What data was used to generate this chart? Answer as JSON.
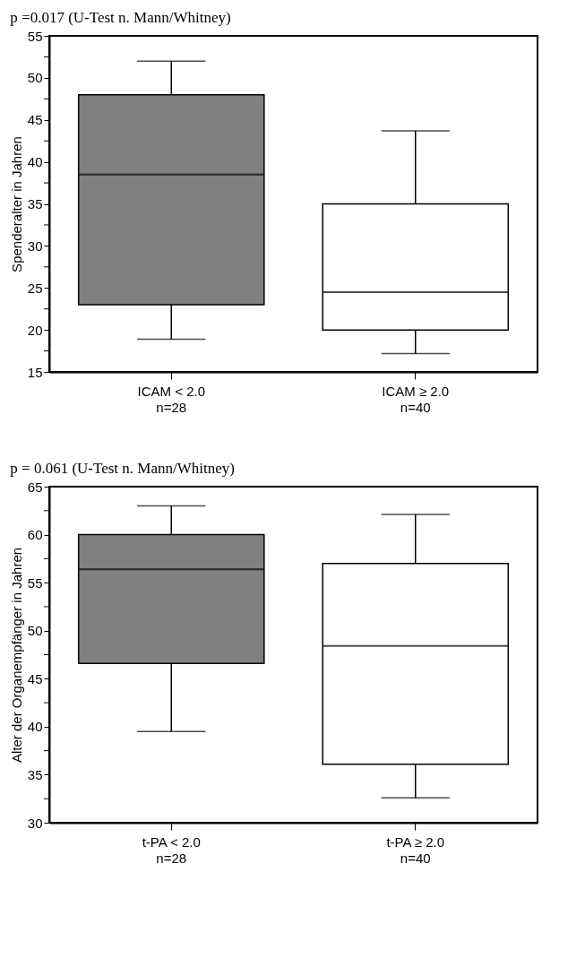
{
  "chart_data": [
    {
      "type": "box",
      "title": "p =0.017 (U-Test n. Mann/Whitney)",
      "ylabel": "Spenderalter in Jahren",
      "categories": [
        "ICAM < 2.0\nn=28",
        "ICAM ≥ 2.0\nn=40"
      ],
      "boxes": [
        {
          "low": 18.9,
          "q1": 23,
          "median": 38.5,
          "q3": 48,
          "high": 52
        },
        {
          "low": 17.2,
          "q1": 20,
          "median": 24.5,
          "q3": 35,
          "high": 43.7
        }
      ],
      "colors": [
        "#808080",
        "#ffffff"
      ],
      "ylim": [
        15,
        55
      ],
      "yticks": [
        15,
        {
          "value": 17.5,
          "label": null
        },
        20,
        {
          "value": 22.5,
          "label": null
        },
        25,
        {
          "value": 27.5,
          "label": null
        },
        30,
        {
          "value": 32.5,
          "label": null
        },
        35,
        {
          "value": 37.5,
          "label": null
        },
        40,
        {
          "value": 42.5,
          "label": null
        },
        45,
        {
          "value": 47.5,
          "label": null
        },
        50,
        {
          "value": 52.5,
          "label": null
        },
        55
      ]
    },
    {
      "type": "box",
      "title": "p = 0.061 (U-Test n. Mann/Whitney)",
      "ylabel": "Alter der Organempfänger in Jahren",
      "categories": [
        "t-PA < 2.0\nn=28",
        "t-PA ≥ 2.0\nn=40"
      ],
      "boxes": [
        {
          "low": 39.5,
          "q1": 46.6,
          "median": 56.4,
          "q3": 60,
          "high": 63
        },
        {
          "low": 32.6,
          "q1": 36.1,
          "median": 48.4,
          "q3": 57,
          "high": 62.1
        }
      ],
      "colors": [
        "#808080",
        "#ffffff"
      ],
      "ylim": [
        30,
        65
      ],
      "yticks": [
        30,
        {
          "value": 32.5,
          "label": null
        },
        35,
        {
          "value": 37.5,
          "label": null
        },
        40,
        {
          "value": 42.5,
          "label": null
        },
        45,
        {
          "value": 47.5,
          "label": null
        },
        50,
        {
          "value": 52.5,
          "label": null
        },
        55,
        {
          "value": 57.5,
          "label": null
        },
        60,
        {
          "value": 62.5,
          "label": null
        },
        65
      ]
    }
  ]
}
